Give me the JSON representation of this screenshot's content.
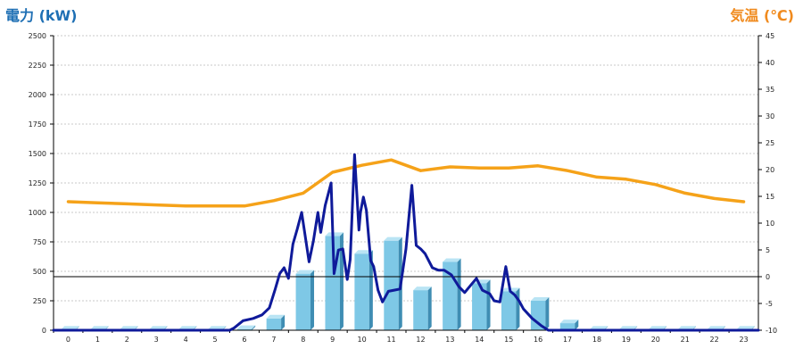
{
  "chart_data": {
    "type": "bar",
    "ylabel": "電力 (kW)",
    "ylabel_right": "気温 (℃)",
    "ylim": [
      0,
      2500
    ],
    "y2lim": [
      -10,
      45
    ],
    "yticks": [
      0,
      250,
      500,
      750,
      1000,
      1250,
      1500,
      1750,
      2000,
      2250,
      2500
    ],
    "y2ticks": [
      -10,
      -5,
      0,
      5,
      10,
      15,
      20,
      25,
      30,
      35,
      40,
      45
    ],
    "categories": [
      "0",
      "1",
      "2",
      "3",
      "4",
      "5",
      "6",
      "7",
      "8",
      "9",
      "10",
      "11",
      "12",
      "13",
      "14",
      "15",
      "16",
      "17",
      "18",
      "19",
      "20",
      "21",
      "22",
      "23"
    ],
    "x_range": [
      0,
      24
    ],
    "grid": true,
    "colors": {
      "bar": "#7ec8e6",
      "bar_side": "#3f8db3",
      "bar_top": "#b9e4f4",
      "power_line": "#0f1a9a",
      "temp_line": "#f5a219",
      "grid": "#c8c8c8",
      "zero_line": "#000000"
    },
    "series": [
      {
        "kind": "bar",
        "values": [
          5,
          5,
          5,
          5,
          5,
          5,
          10,
          100,
          480,
          800,
          650,
          760,
          340,
          580,
          400,
          330,
          250,
          60,
          5,
          5,
          5,
          5,
          5,
          5
        ]
      },
      {
        "kind": "line",
        "axis": "left",
        "x": [
          0,
          6,
          6.15,
          6.45,
          6.8,
          7.1,
          7.35,
          7.55,
          7.7,
          7.85,
          8,
          8.15,
          8.3,
          8.45,
          8.7,
          8.85,
          9,
          9.1,
          9.25,
          9.45,
          9.55,
          9.7,
          9.85,
          10,
          10.1,
          10.25,
          10.4,
          10.45,
          10.55,
          10.65,
          10.8,
          10.9,
          11.05,
          11.2,
          11.4,
          11.6,
          11.8,
          12,
          12.2,
          12.35,
          12.5,
          12.65,
          12.9,
          13.1,
          13.3,
          13.55,
          13.8,
          14,
          14.2,
          14.4,
          14.6,
          14.85,
          15,
          15.2,
          15.4,
          15.55,
          15.7,
          15.85,
          16,
          16.3,
          16.6,
          16.85,
          17,
          24
        ],
        "values": [
          0,
          0,
          20,
          80,
          100,
          130,
          190,
          350,
          480,
          530,
          440,
          730,
          860,
          1000,
          580,
          760,
          1000,
          830,
          1060,
          1250,
          480,
          680,
          690,
          430,
          600,
          1490,
          850,
          1000,
          1130,
          1020,
          590,
          540,
          340,
          240,
          330,
          340,
          350,
          690,
          1230,
          720,
          690,
          650,
          530,
          510,
          510,
          470,
          370,
          320,
          380,
          440,
          340,
          310,
          250,
          240,
          540,
          330,
          300,
          250,
          180,
          100,
          40,
          0,
          0,
          0
        ]
      },
      {
        "kind": "line",
        "axis": "right",
        "x": [
          0,
          1,
          2,
          3,
          4,
          5,
          6,
          7,
          8,
          9,
          10,
          11,
          12,
          13,
          14,
          15,
          16,
          17,
          18,
          19,
          20,
          21,
          22,
          23
        ],
        "values": [
          14,
          13.8,
          13.6,
          13.4,
          13.2,
          13.2,
          13.2,
          14.2,
          15.6,
          19.5,
          20.8,
          21.8,
          19.8,
          20.5,
          20.3,
          20.3,
          20.7,
          19.8,
          18.6,
          18.2,
          17.2,
          15.6,
          14.6,
          14
        ]
      }
    ]
  }
}
